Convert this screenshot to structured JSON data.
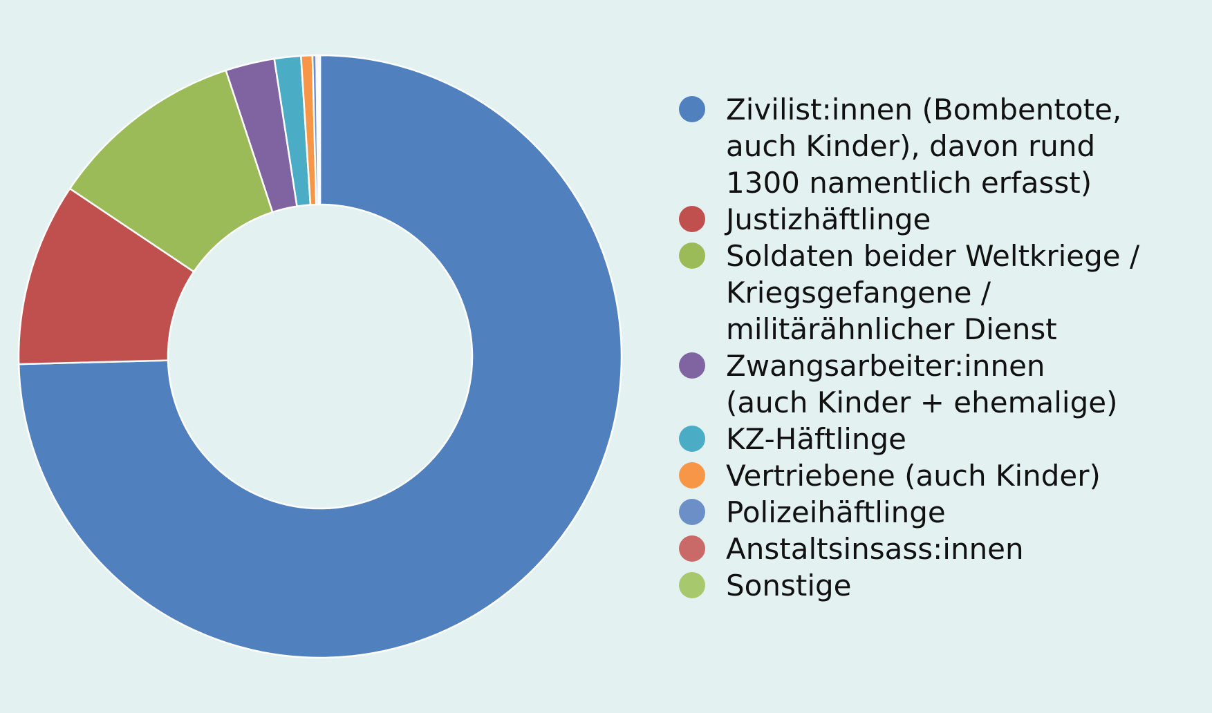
{
  "chart_data": {
    "type": "pie",
    "subtype": "donut",
    "legend_position": "right",
    "slices": [
      {
        "label": "Zivilist:innen (Bombentote,\nauch Kinder), davon rund\n1300 namentlich erfasst)",
        "value": 73.7,
        "color": "#5081be"
      },
      {
        "label": "Justizhäftlinge",
        "value": 9.7,
        "color": "#c0504d"
      },
      {
        "label": "Soldaten beider Weltkriege /\nKriegsgefangene /\nmilitärähnlicher Dienst",
        "value": 10.4,
        "color": "#9bbb59"
      },
      {
        "label": "Zwangsarbeiter:innen\n(auch Kinder + ehemalige)",
        "value": 2.6,
        "color": "#8064a2"
      },
      {
        "label": "KZ-Häftlinge",
        "value": 1.4,
        "color": "#4bacc6"
      },
      {
        "label": "Vertriebene (auch Kinder)",
        "value": 0.6,
        "color": "#f79646"
      },
      {
        "label": "Polizeihäftlinge",
        "value": 0.2,
        "color": "#6c8fc8"
      },
      {
        "label": "Anstaltsinsass:innen",
        "value": 0.1,
        "color": "#c96a68"
      },
      {
        "label": "Sonstige",
        "value": 0.1,
        "color": "#a8c86d"
      }
    ]
  }
}
